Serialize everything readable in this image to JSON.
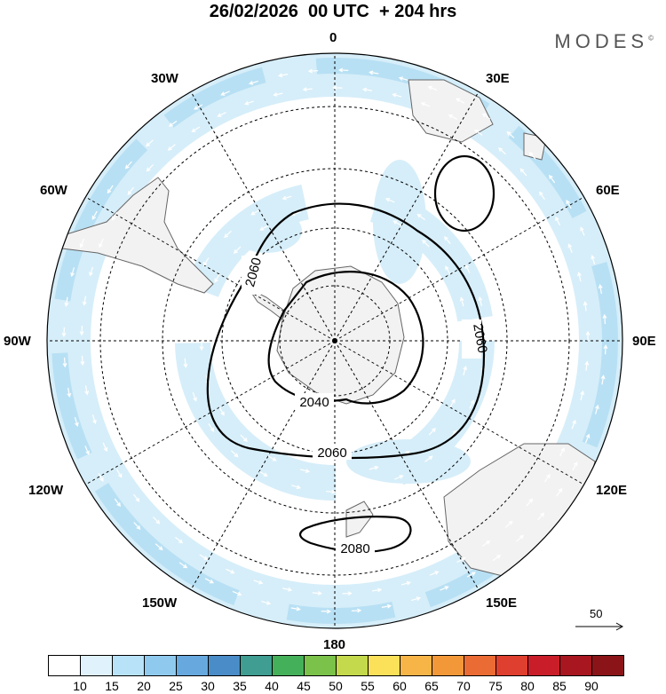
{
  "header": {
    "title": "26/02/2026  00 UTC  + 204 hrs",
    "brand": "MODES"
  },
  "map": {
    "projection": "south-polar-stereographic",
    "longitude_labels": [
      "0",
      "30E",
      "60E",
      "90E",
      "120E",
      "150E",
      "180",
      "150W",
      "120W",
      "90W",
      "60W",
      "30W"
    ],
    "contour_labels": [
      "2040",
      "2060",
      "2060",
      "2060",
      "2080"
    ],
    "reference_vector_label": "50"
  },
  "colorbar": {
    "labels": [
      "10",
      "15",
      "20",
      "25",
      "30",
      "35",
      "40",
      "45",
      "50",
      "55",
      "60",
      "65",
      "70",
      "75",
      "80",
      "85",
      "90"
    ],
    "colors": [
      "#ffffff",
      "#e0f3fc",
      "#b8e2f7",
      "#8fcaee",
      "#67a9de",
      "#4a8cc7",
      "#3f9d92",
      "#45b05a",
      "#7ac24a",
      "#c4d94c",
      "#fbe05a",
      "#f7b548",
      "#f39838",
      "#ea6b33",
      "#df3f2e",
      "#c91e2a",
      "#a8161f",
      "#8b1418"
    ]
  },
  "colors": {
    "land": "#f2f2f2",
    "wind_light": "#d6eef9",
    "wind_medium": "#b8e0f4",
    "coast": "#666666"
  }
}
